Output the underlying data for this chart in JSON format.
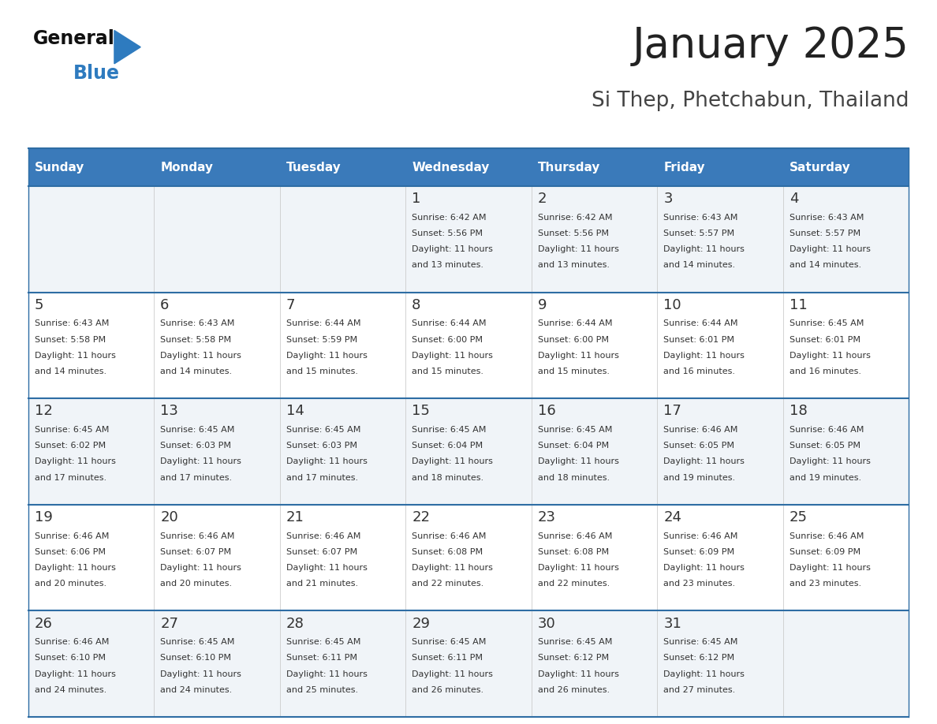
{
  "title": "January 2025",
  "subtitle": "Si Thep, Phetchabun, Thailand",
  "days_of_week": [
    "Sunday",
    "Monday",
    "Tuesday",
    "Wednesday",
    "Thursday",
    "Friday",
    "Saturday"
  ],
  "header_bg_color": "#3a7aba",
  "header_text_color": "#ffffff",
  "cell_bg_color_odd": "#f0f4f8",
  "cell_bg_color_even": "#ffffff",
  "border_color": "#2e6da4",
  "text_color": "#333333",
  "title_color": "#222222",
  "subtitle_color": "#444444",
  "logo_black": "#111111",
  "logo_blue": "#2e7bbf",
  "triangle_color": "#2e7bbf",
  "calendar_data": [
    [
      null,
      null,
      null,
      {
        "day": 1,
        "sunrise": "6:42 AM",
        "sunset": "5:56 PM",
        "daylight": "11 hours and 13 minutes"
      },
      {
        "day": 2,
        "sunrise": "6:42 AM",
        "sunset": "5:56 PM",
        "daylight": "11 hours and 13 minutes"
      },
      {
        "day": 3,
        "sunrise": "6:43 AM",
        "sunset": "5:57 PM",
        "daylight": "11 hours and 14 minutes"
      },
      {
        "day": 4,
        "sunrise": "6:43 AM",
        "sunset": "5:57 PM",
        "daylight": "11 hours and 14 minutes"
      }
    ],
    [
      {
        "day": 5,
        "sunrise": "6:43 AM",
        "sunset": "5:58 PM",
        "daylight": "11 hours and 14 minutes"
      },
      {
        "day": 6,
        "sunrise": "6:43 AM",
        "sunset": "5:58 PM",
        "daylight": "11 hours and 14 minutes"
      },
      {
        "day": 7,
        "sunrise": "6:44 AM",
        "sunset": "5:59 PM",
        "daylight": "11 hours and 15 minutes"
      },
      {
        "day": 8,
        "sunrise": "6:44 AM",
        "sunset": "6:00 PM",
        "daylight": "11 hours and 15 minutes"
      },
      {
        "day": 9,
        "sunrise": "6:44 AM",
        "sunset": "6:00 PM",
        "daylight": "11 hours and 15 minutes"
      },
      {
        "day": 10,
        "sunrise": "6:44 AM",
        "sunset": "6:01 PM",
        "daylight": "11 hours and 16 minutes"
      },
      {
        "day": 11,
        "sunrise": "6:45 AM",
        "sunset": "6:01 PM",
        "daylight": "11 hours and 16 minutes"
      }
    ],
    [
      {
        "day": 12,
        "sunrise": "6:45 AM",
        "sunset": "6:02 PM",
        "daylight": "11 hours and 17 minutes"
      },
      {
        "day": 13,
        "sunrise": "6:45 AM",
        "sunset": "6:03 PM",
        "daylight": "11 hours and 17 minutes"
      },
      {
        "day": 14,
        "sunrise": "6:45 AM",
        "sunset": "6:03 PM",
        "daylight": "11 hours and 17 minutes"
      },
      {
        "day": 15,
        "sunrise": "6:45 AM",
        "sunset": "6:04 PM",
        "daylight": "11 hours and 18 minutes"
      },
      {
        "day": 16,
        "sunrise": "6:45 AM",
        "sunset": "6:04 PM",
        "daylight": "11 hours and 18 minutes"
      },
      {
        "day": 17,
        "sunrise": "6:46 AM",
        "sunset": "6:05 PM",
        "daylight": "11 hours and 19 minutes"
      },
      {
        "day": 18,
        "sunrise": "6:46 AM",
        "sunset": "6:05 PM",
        "daylight": "11 hours and 19 minutes"
      }
    ],
    [
      {
        "day": 19,
        "sunrise": "6:46 AM",
        "sunset": "6:06 PM",
        "daylight": "11 hours and 20 minutes"
      },
      {
        "day": 20,
        "sunrise": "6:46 AM",
        "sunset": "6:07 PM",
        "daylight": "11 hours and 20 minutes"
      },
      {
        "day": 21,
        "sunrise": "6:46 AM",
        "sunset": "6:07 PM",
        "daylight": "11 hours and 21 minutes"
      },
      {
        "day": 22,
        "sunrise": "6:46 AM",
        "sunset": "6:08 PM",
        "daylight": "11 hours and 22 minutes"
      },
      {
        "day": 23,
        "sunrise": "6:46 AM",
        "sunset": "6:08 PM",
        "daylight": "11 hours and 22 minutes"
      },
      {
        "day": 24,
        "sunrise": "6:46 AM",
        "sunset": "6:09 PM",
        "daylight": "11 hours and 23 minutes"
      },
      {
        "day": 25,
        "sunrise": "6:46 AM",
        "sunset": "6:09 PM",
        "daylight": "11 hours and 23 minutes"
      }
    ],
    [
      {
        "day": 26,
        "sunrise": "6:46 AM",
        "sunset": "6:10 PM",
        "daylight": "11 hours and 24 minutes"
      },
      {
        "day": 27,
        "sunrise": "6:45 AM",
        "sunset": "6:10 PM",
        "daylight": "11 hours and 24 minutes"
      },
      {
        "day": 28,
        "sunrise": "6:45 AM",
        "sunset": "6:11 PM",
        "daylight": "11 hours and 25 minutes"
      },
      {
        "day": 29,
        "sunrise": "6:45 AM",
        "sunset": "6:11 PM",
        "daylight": "11 hours and 26 minutes"
      },
      {
        "day": 30,
        "sunrise": "6:45 AM",
        "sunset": "6:12 PM",
        "daylight": "11 hours and 26 minutes"
      },
      {
        "day": 31,
        "sunrise": "6:45 AM",
        "sunset": "6:12 PM",
        "daylight": "11 hours and 27 minutes"
      },
      null
    ]
  ],
  "fig_width": 11.88,
  "fig_height": 9.18,
  "dpi": 100
}
